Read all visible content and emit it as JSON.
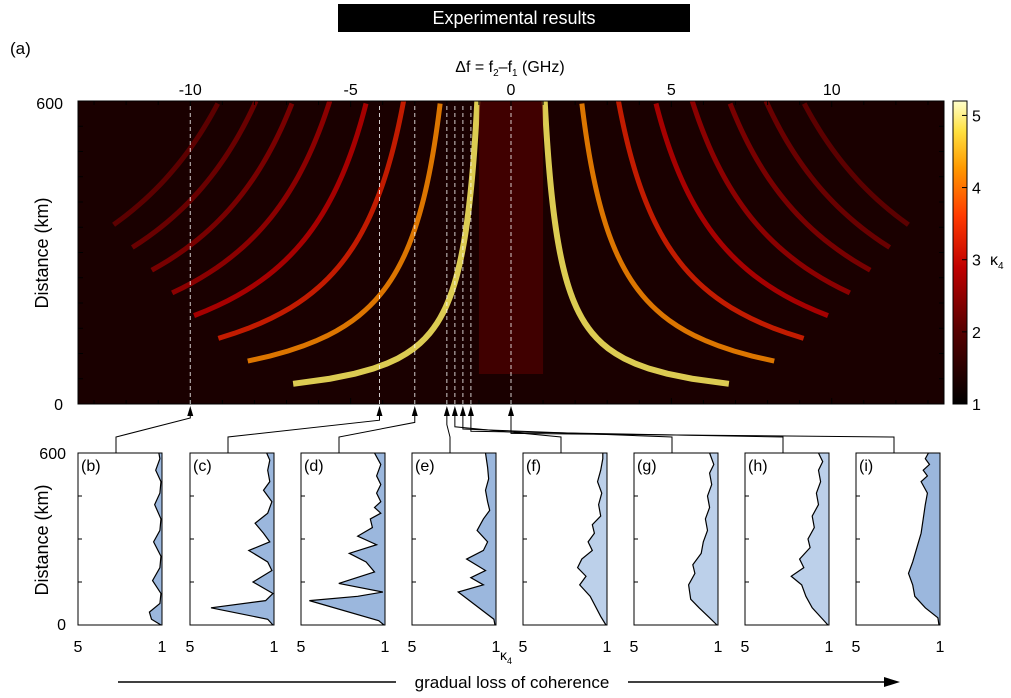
{
  "header": {
    "title": "Experimental results",
    "panel_label": "(a)"
  },
  "heatmap": {
    "xlabel_main": "Δf = f",
    "xlabel_sub2": "2",
    "xlabel_dash": "–f",
    "xlabel_sub1": "1",
    "xlabel_unit": " (GHz)",
    "ylabel": "Distance (km)",
    "xticks": [
      -10,
      -5,
      0,
      5,
      10
    ],
    "xtick_labels": [
      "-10",
      "-5",
      "0",
      "5",
      "10"
    ],
    "xlim": [
      -13.5,
      13.5
    ],
    "yticks": [
      0,
      600
    ],
    "ytick_labels": [
      "0",
      "600"
    ],
    "ylim": [
      0,
      600
    ],
    "colorbar": {
      "ticks": [
        1,
        2,
        3,
        4,
        5
      ],
      "tick_labels": [
        "1",
        "2",
        "3",
        "4",
        "5"
      ],
      "range": [
        1,
        5.2
      ],
      "label": "κ",
      "label_sub": "4"
    },
    "markers_ghz": [
      -10,
      -4.1,
      -3.0,
      -2.0,
      -1.75,
      -1.5,
      -1.25,
      0
    ]
  },
  "profiles": {
    "ylabel": "Distance (km)",
    "ytick_labels": [
      "600",
      "0"
    ],
    "xtick_left": "5",
    "xtick_right": "1",
    "xlabel": "κ",
    "xlabel_sub": "4",
    "panels": [
      "(b)",
      "(c)",
      "(d)",
      "(e)",
      "(f)",
      "(g)",
      "(h)",
      "(i)"
    ]
  },
  "footer": {
    "arrow_label": "gradual loss of coherence"
  },
  "colors": {
    "fill": "#9bb7dd",
    "fill_light": "#bcd0ea",
    "heat_dark": "#0a0000",
    "heat_bright": "#fff5a0"
  },
  "chart_data": [
    {
      "type": "heatmap",
      "x_unit": "GHz",
      "y_unit": "km",
      "xlim": [
        -13.5,
        13.5
      ],
      "ylim": [
        0,
        600
      ],
      "zlim": [
        1,
        5.2
      ],
      "description_of_pattern": "symmetric fan of bright curved fringes around Δf = 0"
    },
    {
      "type": "line",
      "series": [
        {
          "name": "(b)",
          "points": [
            [
              1.05,
              0
            ],
            [
              1.5,
              20
            ],
            [
              1.6,
              45
            ],
            [
              1.1,
              75
            ],
            [
              1.05,
              110
            ],
            [
              1.45,
              155
            ],
            [
              1.1,
              200
            ],
            [
              1.05,
              240
            ],
            [
              1.4,
              290
            ],
            [
              1.1,
              330
            ],
            [
              1.05,
              370
            ],
            [
              1.35,
              420
            ],
            [
              1.1,
              460
            ],
            [
              1.05,
              500
            ],
            [
              1.3,
              540
            ],
            [
              1.1,
              580
            ],
            [
              1.15,
              600
            ]
          ]
        },
        {
          "name": "(c)",
          "points": [
            [
              1.05,
              0
            ],
            [
              1.3,
              20
            ],
            [
              4.0,
              60
            ],
            [
              1.4,
              85
            ],
            [
              1.05,
              110
            ],
            [
              2.0,
              150
            ],
            [
              1.1,
              190
            ],
            [
              1.3,
              220
            ],
            [
              2.2,
              260
            ],
            [
              1.2,
              290
            ],
            [
              1.5,
              320
            ],
            [
              1.9,
              355
            ],
            [
              1.3,
              390
            ],
            [
              1.1,
              430
            ],
            [
              1.5,
              470
            ],
            [
              1.2,
              500
            ],
            [
              1.3,
              540
            ],
            [
              1.2,
              575
            ],
            [
              1.35,
              600
            ]
          ]
        },
        {
          "name": "(d)",
          "points": [
            [
              1.05,
              0
            ],
            [
              1.3,
              15
            ],
            [
              4.6,
              85
            ],
            [
              2.3,
              100
            ],
            [
              1.1,
              115
            ],
            [
              3.2,
              145
            ],
            [
              1.5,
              185
            ],
            [
              1.9,
              220
            ],
            [
              2.7,
              250
            ],
            [
              1.4,
              280
            ],
            [
              2.3,
              310
            ],
            [
              1.6,
              340
            ],
            [
              1.7,
              370
            ],
            [
              1.2,
              390
            ],
            [
              1.5,
              410
            ],
            [
              1.2,
              430
            ],
            [
              1.4,
              460
            ],
            [
              1.2,
              490
            ],
            [
              1.4,
              520
            ],
            [
              1.2,
              560
            ],
            [
              1.5,
              600
            ]
          ]
        },
        {
          "name": "(e)",
          "points": [
            [
              1.05,
              0
            ],
            [
              1.1,
              20
            ],
            [
              2.8,
              115
            ],
            [
              1.6,
              140
            ],
            [
              2.2,
              165
            ],
            [
              1.5,
              190
            ],
            [
              2.4,
              230
            ],
            [
              1.6,
              260
            ],
            [
              1.4,
              290
            ],
            [
              1.9,
              330
            ],
            [
              1.6,
              370
            ],
            [
              1.3,
              400
            ],
            [
              1.4,
              430
            ],
            [
              1.5,
              470
            ],
            [
              1.35,
              510
            ],
            [
              1.4,
              550
            ],
            [
              1.5,
              600
            ]
          ]
        },
        {
          "name": "(f)",
          "points": [
            [
              1.05,
              0
            ],
            [
              1.3,
              30
            ],
            [
              1.8,
              100
            ],
            [
              2.3,
              140
            ],
            [
              2.0,
              170
            ],
            [
              2.4,
              200
            ],
            [
              2.2,
              230
            ],
            [
              1.7,
              260
            ],
            [
              1.9,
              290
            ],
            [
              1.6,
              320
            ],
            [
              1.7,
              350
            ],
            [
              1.3,
              380
            ],
            [
              1.4,
              420
            ],
            [
              1.25,
              460
            ],
            [
              1.45,
              500
            ],
            [
              1.3,
              540
            ],
            [
              1.2,
              580
            ],
            [
              1.2,
              600
            ]
          ]
        },
        {
          "name": "(g)",
          "points": [
            [
              1.05,
              0
            ],
            [
              1.4,
              25
            ],
            [
              1.9,
              60
            ],
            [
              2.3,
              90
            ],
            [
              2.4,
              140
            ],
            [
              2.1,
              180
            ],
            [
              2.2,
              210
            ],
            [
              1.8,
              250
            ],
            [
              1.7,
              290
            ],
            [
              1.5,
              330
            ],
            [
              1.6,
              370
            ],
            [
              1.4,
              410
            ],
            [
              1.5,
              450
            ],
            [
              1.3,
              490
            ],
            [
              1.4,
              530
            ],
            [
              1.2,
              560
            ],
            [
              1.4,
              600
            ]
          ]
        },
        {
          "name": "(h)",
          "points": [
            [
              1.05,
              0
            ],
            [
              1.3,
              20
            ],
            [
              1.8,
              60
            ],
            [
              2.1,
              100
            ],
            [
              2.3,
              140
            ],
            [
              2.8,
              170
            ],
            [
              2.2,
              200
            ],
            [
              2.4,
              230
            ],
            [
              1.9,
              270
            ],
            [
              2.0,
              300
            ],
            [
              1.7,
              340
            ],
            [
              1.8,
              380
            ],
            [
              1.5,
              420
            ],
            [
              1.6,
              460
            ],
            [
              1.4,
              500
            ],
            [
              1.5,
              540
            ],
            [
              1.3,
              570
            ],
            [
              1.5,
              600
            ]
          ]
        },
        {
          "name": "(i)",
          "points": [
            [
              1.05,
              0
            ],
            [
              1.1,
              25
            ],
            [
              1.7,
              60
            ],
            [
              2.2,
              100
            ],
            [
              2.3,
              140
            ],
            [
              2.5,
              180
            ],
            [
              2.3,
              220
            ],
            [
              2.1,
              270
            ],
            [
              1.9,
              320
            ],
            [
              1.8,
              370
            ],
            [
              1.7,
              420
            ],
            [
              1.6,
              460
            ],
            [
              1.9,
              500
            ],
            [
              1.6,
              520
            ],
            [
              1.8,
              540
            ],
            [
              1.5,
              560
            ],
            [
              1.7,
              580
            ],
            [
              1.55,
              600
            ]
          ]
        }
      ],
      "xlim": [
        5,
        1
      ],
      "ylim": [
        0,
        600
      ],
      "xlabel": "κ4",
      "ylabel": "Distance (km)"
    }
  ]
}
